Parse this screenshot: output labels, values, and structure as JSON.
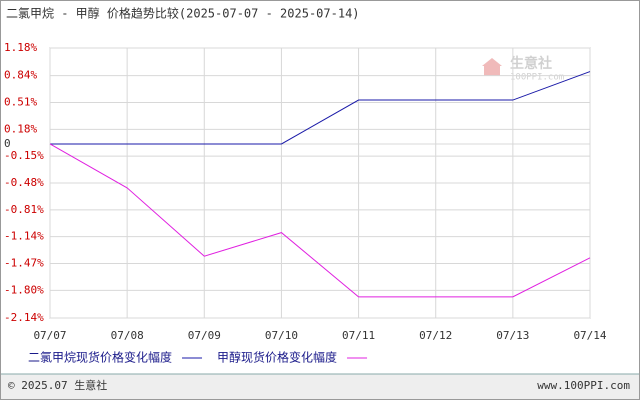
{
  "chart_data": {
    "type": "line",
    "title": "二氯甲烷 - 甲醇 价格趋势比较(2025-07-07 - 2025-07-14)",
    "categories": [
      "07/07",
      "07/08",
      "07/09",
      "07/10",
      "07/11",
      "07/12",
      "07/13",
      "07/14"
    ],
    "series": [
      {
        "name": "二氯甲烷现货价格变化幅度",
        "color": "#1a1aa8",
        "values": [
          0,
          0,
          0,
          0,
          0.54,
          0.54,
          0.54,
          0.89
        ]
      },
      {
        "name": "甲醇现货价格变化幅度",
        "color": "#e020e0",
        "values": [
          0,
          -0.54,
          -1.38,
          -1.09,
          -1.88,
          -1.88,
          -1.88,
          -1.4
        ]
      }
    ],
    "ylim": [
      -2.14,
      1.18
    ],
    "yticks": [
      {
        "value": 1.18,
        "label": "1.18%"
      },
      {
        "value": 0.84,
        "label": "0.84%"
      },
      {
        "value": 0.51,
        "label": "0.51%"
      },
      {
        "value": 0.18,
        "label": "0.18%"
      },
      0,
      {
        "value": -0.15,
        "label": "-0.15%"
      },
      {
        "value": -0.48,
        "label": "-0.48%"
      },
      {
        "value": -0.81,
        "label": "-0.81%"
      },
      {
        "value": -1.14,
        "label": "-1.14%"
      },
      {
        "value": -1.47,
        "label": "-1.47%"
      },
      {
        "value": -1.8,
        "label": "-1.80%"
      },
      {
        "value": -2.14,
        "label": "-2.14%"
      }
    ],
    "grid": true
  },
  "watermark": {
    "name": "生意社",
    "site": "100PPI.com"
  },
  "footer": {
    "copyright": "© 2025.07 生意社",
    "site": "www.100PPI.com"
  }
}
